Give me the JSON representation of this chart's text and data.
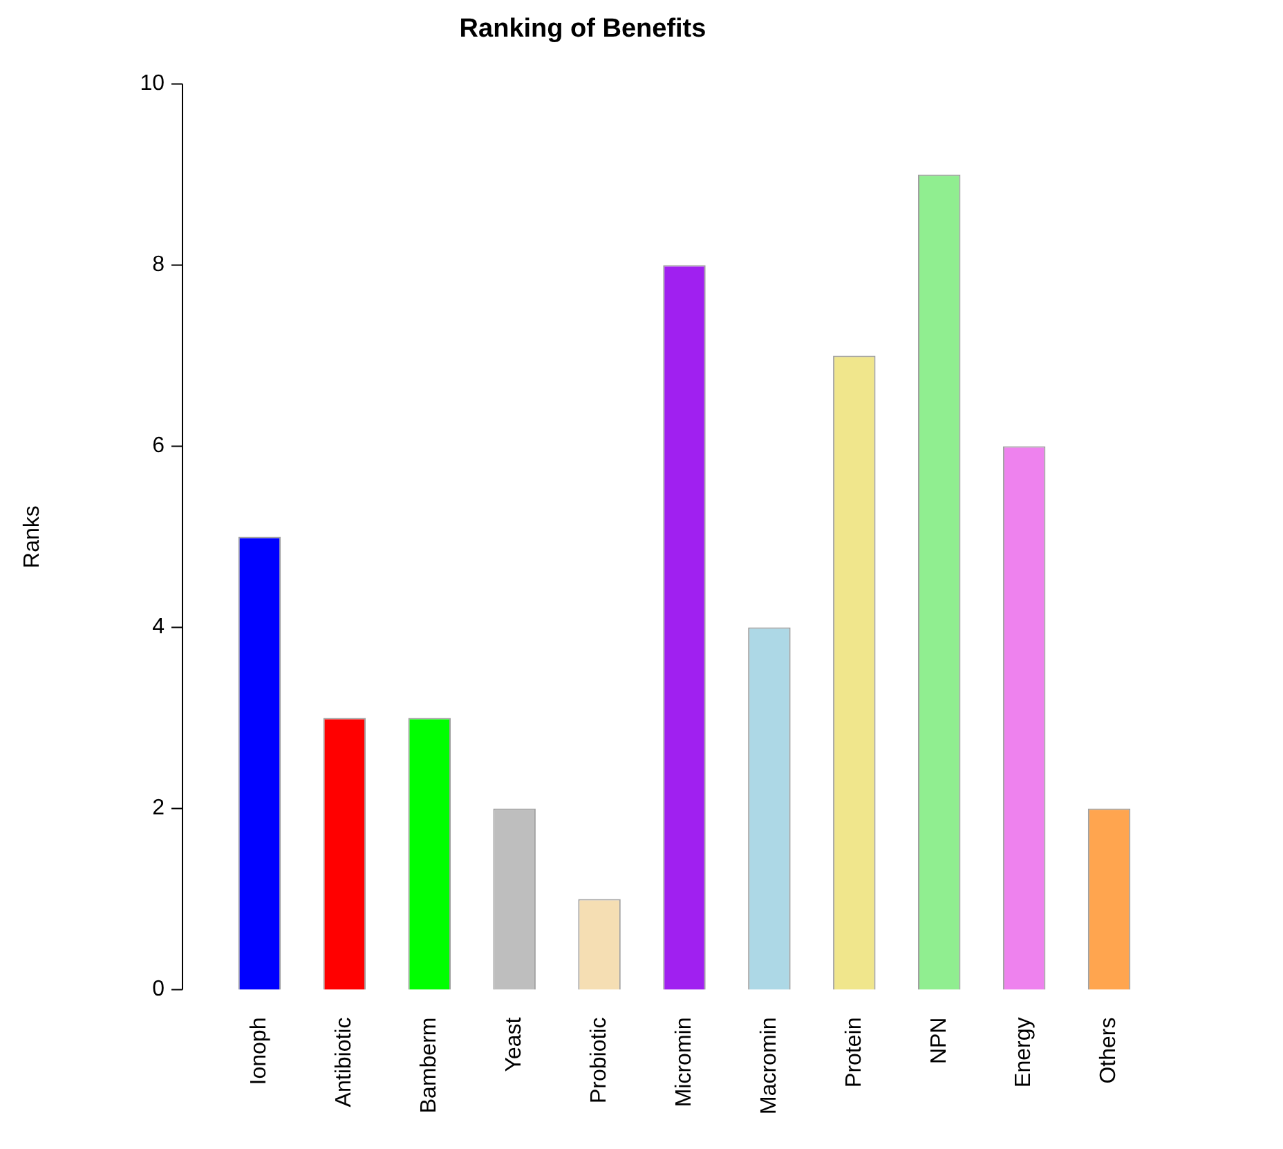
{
  "chart_data": {
    "type": "bar",
    "title": "Ranking of Benefits",
    "ylabel": "Ranks",
    "categories": [
      "Ionoph",
      "Antibiotic",
      "Bamberm",
      "Yeast",
      "Probiotic",
      "Micromin",
      "Macromin",
      "Protein",
      "NPN",
      "Energy",
      "Others"
    ],
    "values": [
      5,
      3,
      3,
      2,
      1,
      8,
      4,
      7,
      9,
      6,
      2
    ],
    "colors": [
      "#0000ff",
      "#ff0000",
      "#00ff00",
      "#bebebe",
      "#f5deb3",
      "#a020f0",
      "#add8e6",
      "#f0e68c",
      "#90ee90",
      "#ee82ee",
      "#ffa54f"
    ],
    "ylim": [
      0,
      10
    ],
    "yticks": [
      0,
      2,
      4,
      6,
      8,
      10
    ],
    "grid": false,
    "legend": false
  }
}
